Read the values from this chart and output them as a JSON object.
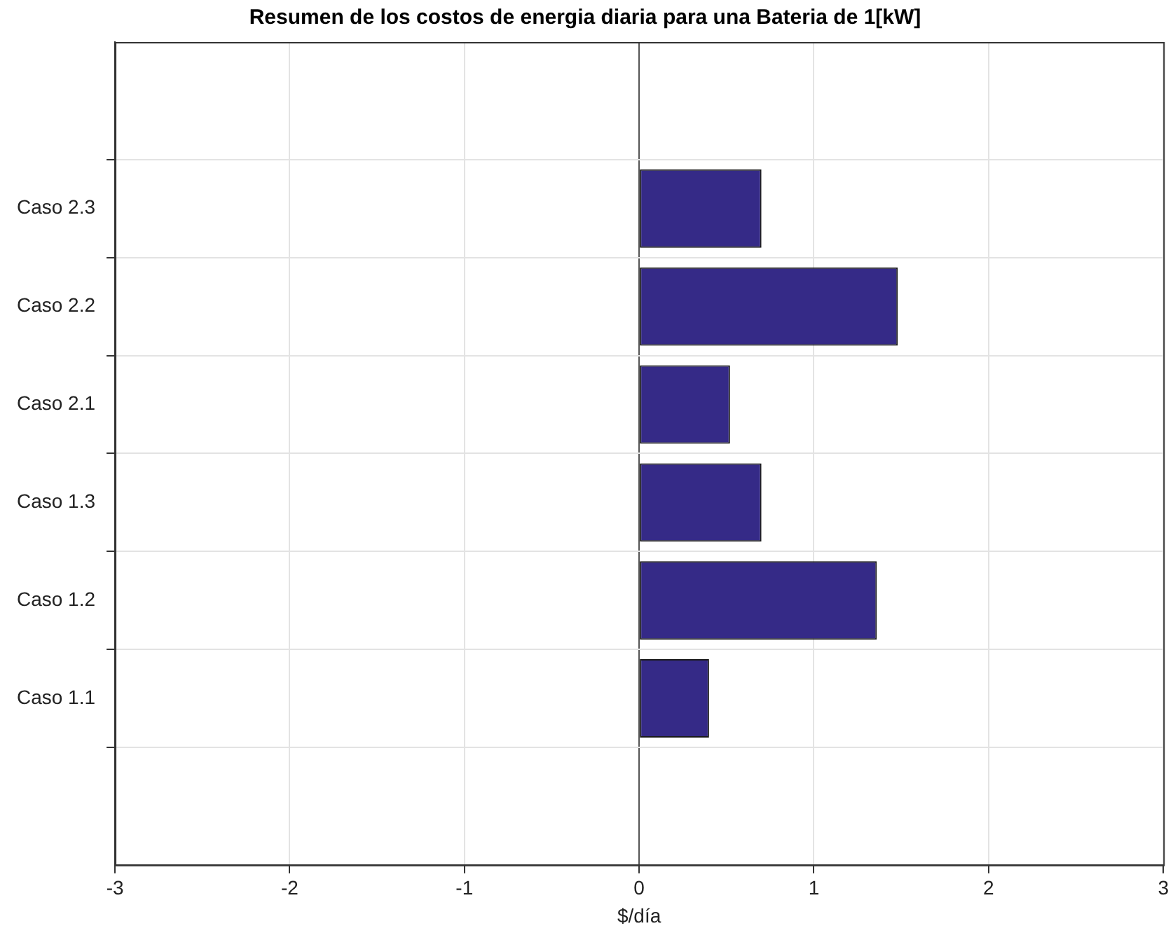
{
  "chart_data": {
    "type": "bar",
    "orientation": "horizontal",
    "title": "Resumen de los costos de energia diaria para una Bateria de 1[kW]",
    "xlabel": "$/día",
    "categories": [
      "Caso 2.3",
      "Caso 2.2",
      "Caso 2.1",
      "Caso 1.3",
      "Caso 1.2",
      "Caso 1.1"
    ],
    "values": [
      0.7,
      1.48,
      0.52,
      0.7,
      1.36,
      0.4
    ],
    "color": "#352a87",
    "xlim": [
      -3,
      3
    ],
    "xticks": [
      -3,
      -2,
      -1,
      0,
      1,
      2,
      3
    ],
    "grid": true
  }
}
